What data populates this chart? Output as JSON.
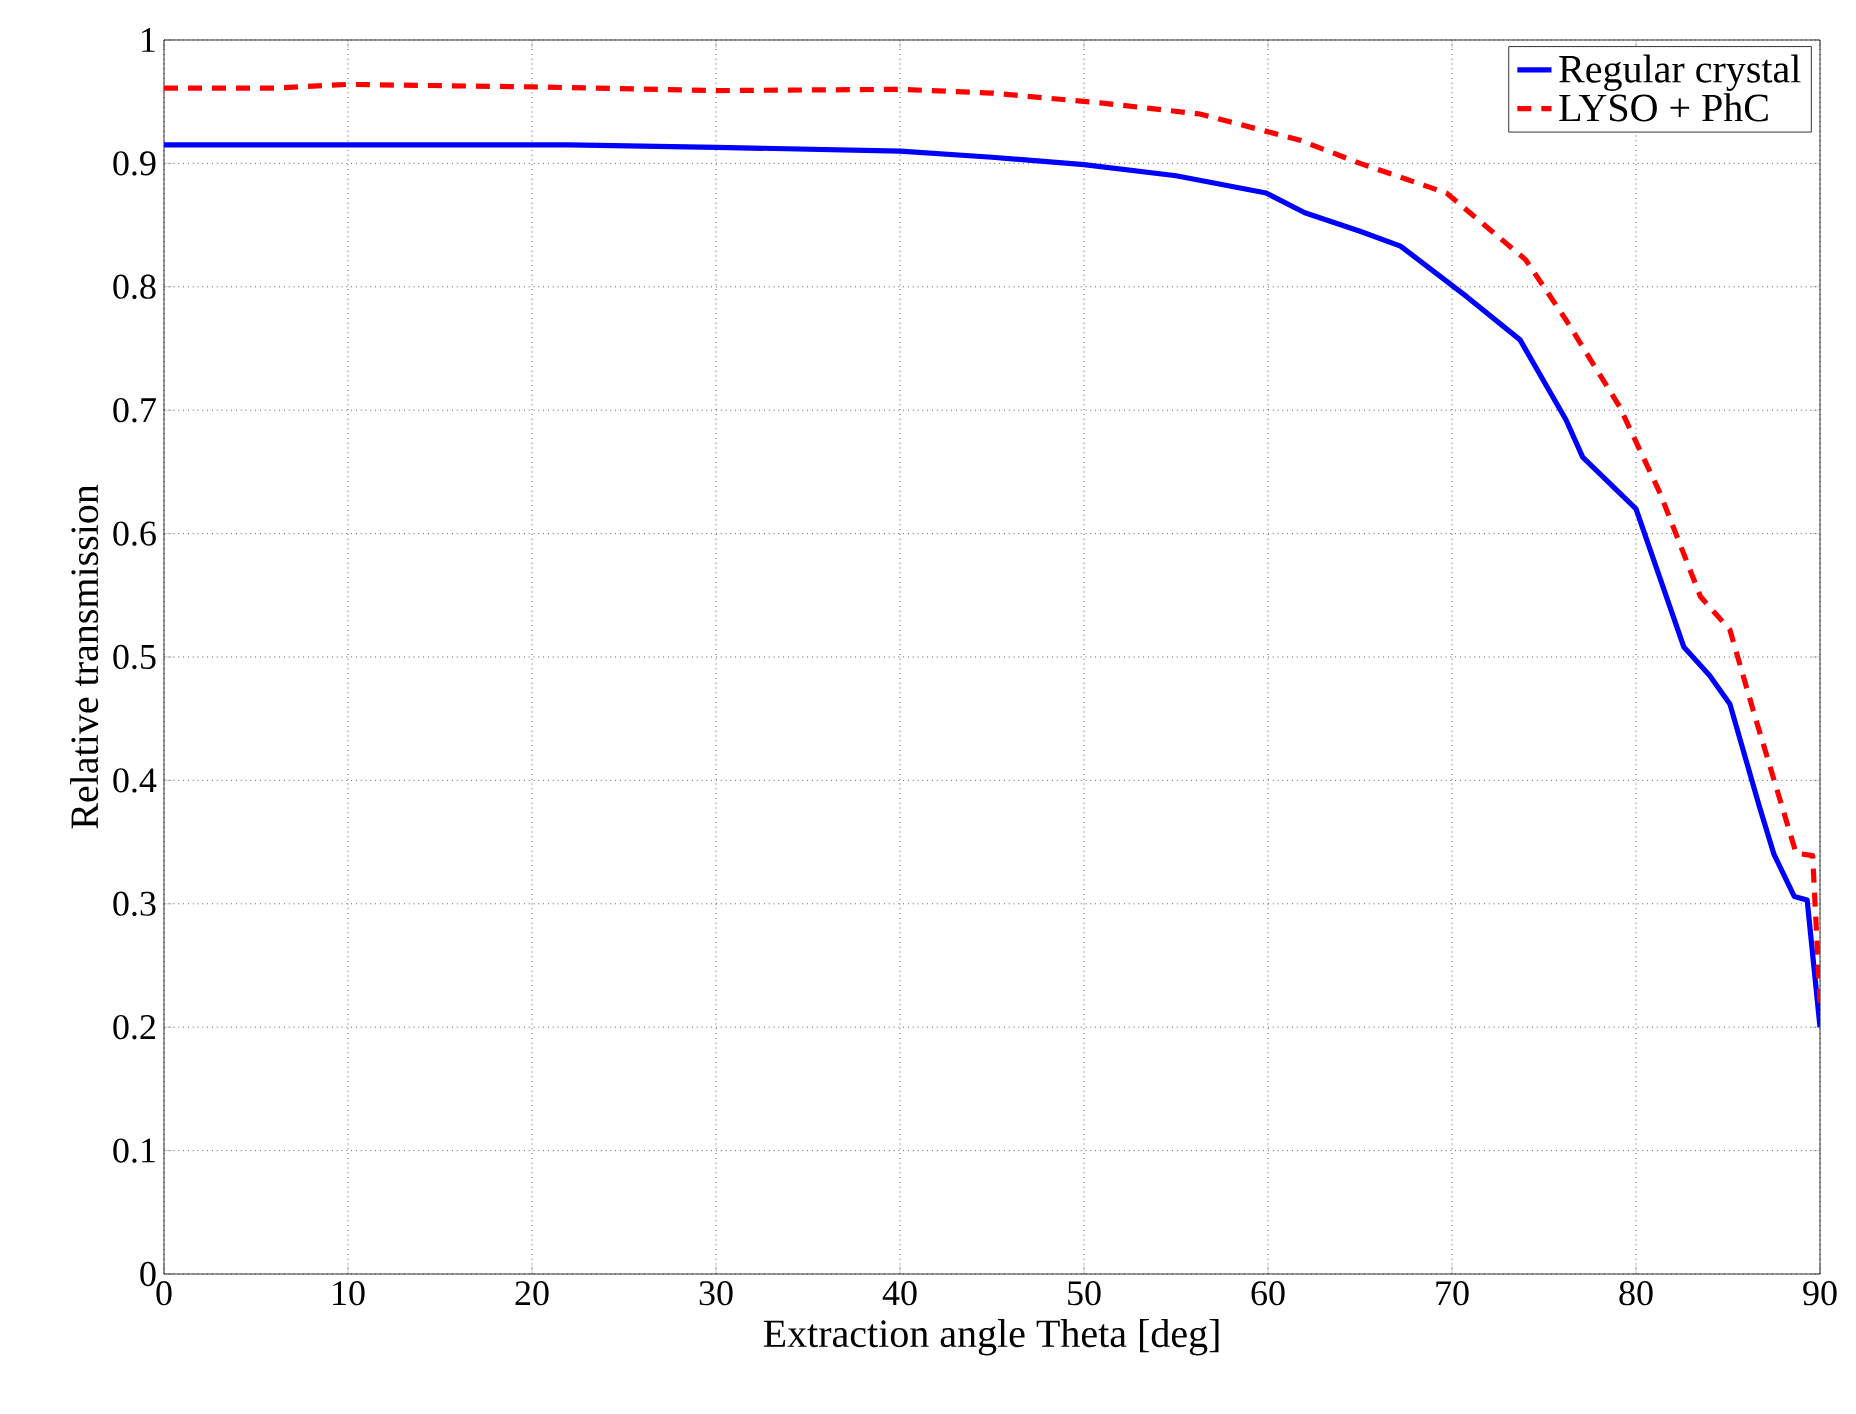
{
  "chart_data": {
    "type": "line",
    "xlabel": "Extraction angle Theta [deg]",
    "ylabel": "Relative transmission",
    "xlim": [
      0,
      90
    ],
    "ylim": [
      0,
      1
    ],
    "xticks": [
      0,
      10,
      20,
      30,
      40,
      50,
      60,
      70,
      80,
      90
    ],
    "yticks": [
      0,
      {
        "value": 0.1,
        "label": "0.1"
      },
      {
        "value": 0.2,
        "label": "0.2"
      },
      {
        "value": 0.3,
        "label": "0.3"
      },
      {
        "value": 0.4,
        "label": "0.4"
      },
      {
        "value": 0.5,
        "label": "0.5"
      },
      {
        "value": 0.6,
        "label": "0.6"
      },
      {
        "value": 0.7,
        "label": "0.7"
      },
      {
        "value": 0.8,
        "label": "0.8"
      },
      {
        "value": 0.9,
        "label": "0.9"
      },
      1
    ],
    "grid": true,
    "legend": "top right",
    "series": [
      {
        "name": "Regular crystal",
        "color": "#0000ff",
        "line_style": "solid",
        "x": [
          0,
          22,
          30,
          40,
          45,
          50,
          55,
          59.9,
          62,
          65,
          67.2,
          70.8,
          73.7,
          76.2,
          77.1,
          80,
          82.6,
          84,
          85.1,
          86.7,
          87.5,
          88.6,
          89.3,
          90
        ],
        "values": [
          0.915,
          0.915,
          0.913,
          0.91,
          0.905,
          0.899,
          0.89,
          0.876,
          0.86,
          0.845,
          0.833,
          0.792,
          0.757,
          0.692,
          0.662,
          0.62,
          0.508,
          0.485,
          0.462,
          0.379,
          0.34,
          0.306,
          0.303,
          0.2
        ]
      },
      {
        "name": "LYSO + PhC",
        "color": "#ff0000",
        "line_style": "dashed",
        "x": [
          0,
          6,
          10,
          20,
          30,
          40,
          45,
          50.9,
          56.3,
          61.7,
          65,
          69.7,
          74,
          76.2,
          79.1,
          81.3,
          83.5,
          85.1,
          86.5,
          88.7,
          89.6,
          90
        ],
        "values": [
          0.961,
          0.961,
          0.964,
          0.962,
          0.959,
          0.96,
          0.957,
          0.949,
          0.94,
          0.919,
          0.9,
          0.876,
          0.822,
          0.773,
          0.703,
          0.633,
          0.549,
          0.522,
          0.45,
          0.341,
          0.339,
          0.22
        ]
      }
    ]
  }
}
